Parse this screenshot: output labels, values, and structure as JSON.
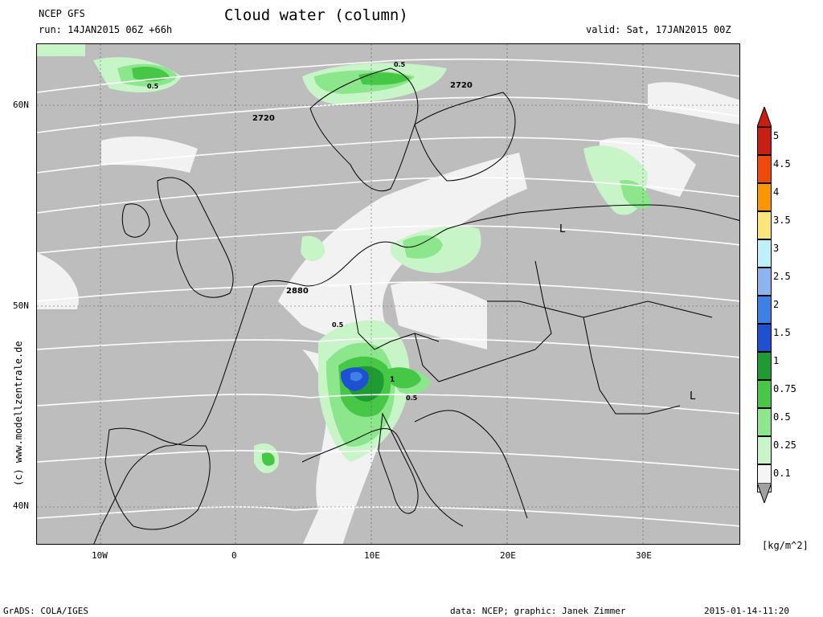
{
  "header": {
    "model": "NCEP GFS",
    "run": "run: 14JAN2015 06Z +66h",
    "title": "Cloud water (column)",
    "valid": "valid: Sat, 17JAN2015 00Z"
  },
  "map": {
    "lat_labels": [
      "60N",
      "50N",
      "40N"
    ],
    "lon_labels": [
      "10W",
      "0",
      "10E",
      "20E",
      "30E"
    ],
    "contour_labels": [
      "2720",
      "2720",
      "2880",
      "0.5",
      "0.5",
      "0.5",
      "0.5",
      "1",
      "L",
      "L"
    ]
  },
  "legend": {
    "unit": "[kg/m^2]",
    "levels": [
      {
        "label": "5",
        "color": "#c81e14"
      },
      {
        "label": "4.5",
        "color": "#f04a0a"
      },
      {
        "label": "4",
        "color": "#fa9600"
      },
      {
        "label": "3.5",
        "color": "#fae678"
      },
      {
        "label": "3",
        "color": "#bef0fa"
      },
      {
        "label": "2.5",
        "color": "#8cb4f0"
      },
      {
        "label": "2",
        "color": "#3c82e6"
      },
      {
        "label": "1.5",
        "color": "#1e50d2"
      },
      {
        "label": "1",
        "color": "#1e9b32"
      },
      {
        "label": "0.75",
        "color": "#46c846"
      },
      {
        "label": "0.5",
        "color": "#8ce68c"
      },
      {
        "label": "0.25",
        "color": "#c8f5c8"
      },
      {
        "label": "0.1",
        "color": "#f5f5f5"
      }
    ]
  },
  "side_credit": "(c) www.modellzentrale.de",
  "footer": {
    "left": "GrADS: COLA/IGES",
    "center": "data: NCEP; graphic: Janek Zimmer",
    "right": "2015-01-14-11:20"
  }
}
